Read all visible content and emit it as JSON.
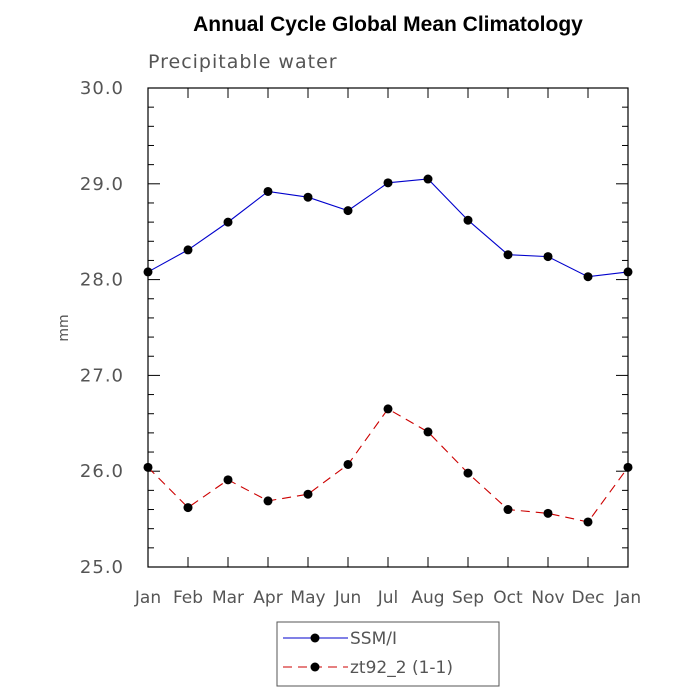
{
  "chart_data": {
    "type": "line",
    "title": "Annual Cycle Global Mean Climatology",
    "subtitle": "Precipitable water",
    "xlabel": "",
    "ylabel": "mm",
    "categories": [
      "Jan",
      "Feb",
      "Mar",
      "Apr",
      "May",
      "Jun",
      "Jul",
      "Aug",
      "Sep",
      "Oct",
      "Nov",
      "Dec",
      "Jan"
    ],
    "ylim": [
      25.0,
      30.0
    ],
    "yticks": [
      "25.0",
      "26.0",
      "27.0",
      "28.0",
      "29.0",
      "30.0"
    ],
    "yticks_values": [
      25.0,
      26.0,
      27.0,
      28.0,
      29.0,
      30.0
    ],
    "series": [
      {
        "name": "SSM/I",
        "color": "#0000cc",
        "dash": "solid",
        "values": [
          28.08,
          28.31,
          28.6,
          28.92,
          28.86,
          28.72,
          29.01,
          29.05,
          28.62,
          28.26,
          28.24,
          28.03,
          28.08
        ]
      },
      {
        "name": "zt92_2 (1-1)",
        "color": "#cc0000",
        "dash": "dashed",
        "values": [
          26.04,
          25.62,
          25.91,
          25.69,
          25.76,
          26.07,
          26.65,
          26.41,
          25.98,
          25.6,
          25.56,
          25.47,
          26.04
        ]
      }
    ],
    "legend": {
      "position": "bottom-center",
      "entries": [
        "SSM/I",
        "zt92_2 (1-1)"
      ]
    }
  }
}
